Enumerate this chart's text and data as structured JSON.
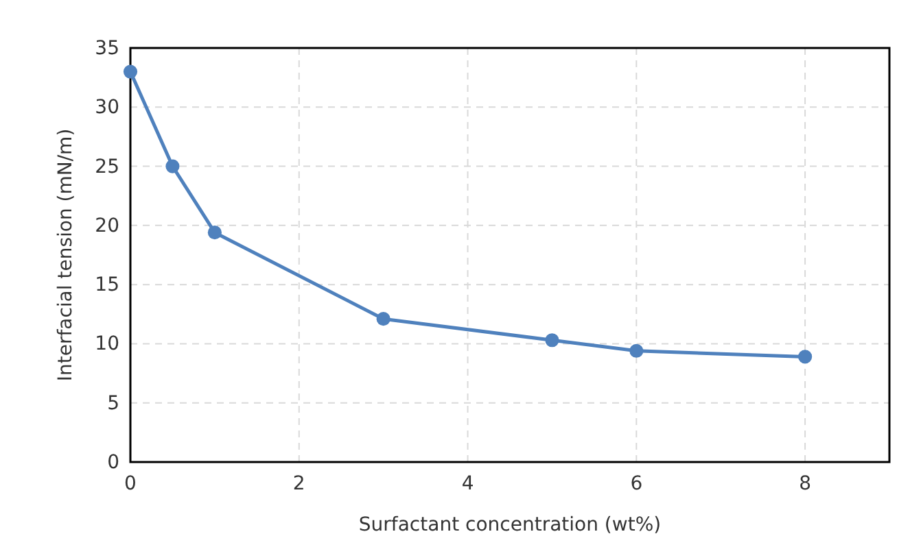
{
  "chart_data": {
    "type": "line",
    "xlabel": "Surfactant concentration (wt%)",
    "ylabel": "Interfacial tension (mN/m)",
    "x": [
      0,
      0.5,
      1,
      3,
      5,
      6,
      8
    ],
    "series": [
      {
        "color": "#4f81bd",
        "values": [
          33,
          25,
          19.4,
          12.1,
          10.3,
          9.4,
          8.9
        ]
      }
    ],
    "xlim": [
      0,
      9
    ],
    "xticks": [
      0,
      2,
      4,
      6,
      8
    ],
    "ylim": [
      0,
      35
    ],
    "yticks": [
      0,
      5,
      10,
      15,
      20,
      25,
      30,
      35
    ],
    "grid": true,
    "marker": "circle",
    "line_style": "solid"
  }
}
